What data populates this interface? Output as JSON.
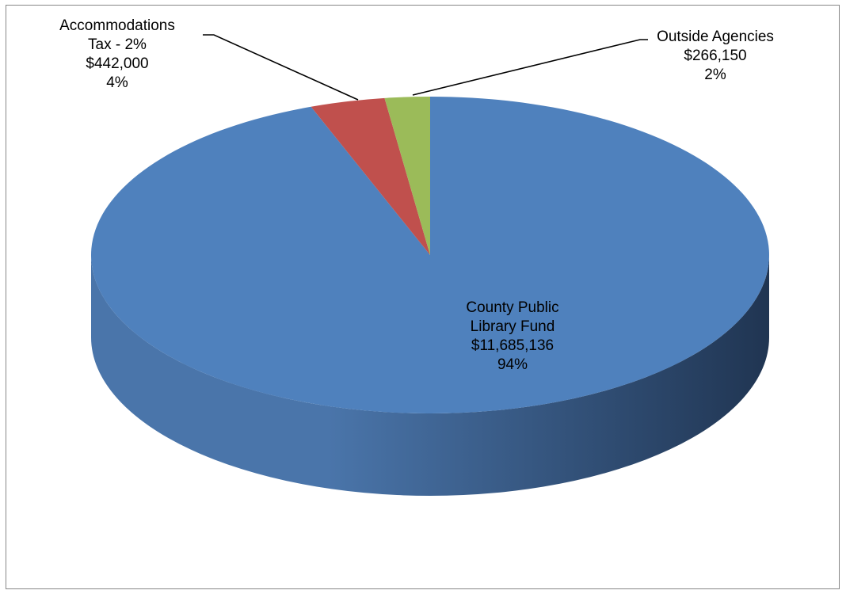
{
  "chart_data": {
    "type": "pie",
    "style": "3d",
    "title": "",
    "slices": [
      {
        "name": "County Public Library Fund",
        "label_lines": [
          "County Public",
          "Library Fund",
          "$11,685,136",
          "94%"
        ],
        "value": 11685136,
        "percent": "94%",
        "color": "#4f81bd",
        "side_dark": "#203552",
        "side_light": "#4a75aa"
      },
      {
        "name": "Accommodations Tax - 2%",
        "label_lines": [
          "Accommodations",
          "Tax - 2%",
          "$442,000",
          "4%"
        ],
        "value": 442000,
        "percent": "4%",
        "color": "#c0504d",
        "side_dark": "#7a2f2d",
        "side_light": "#b04744"
      },
      {
        "name": "Outside Agencies",
        "label_lines": [
          "Outside Agencies",
          "$266,150",
          "2%"
        ],
        "value": 266150,
        "percent": "2%",
        "color": "#9bbb59",
        "side_dark": "#5e7434",
        "side_light": "#8fae4f"
      }
    ],
    "legend": "none"
  }
}
